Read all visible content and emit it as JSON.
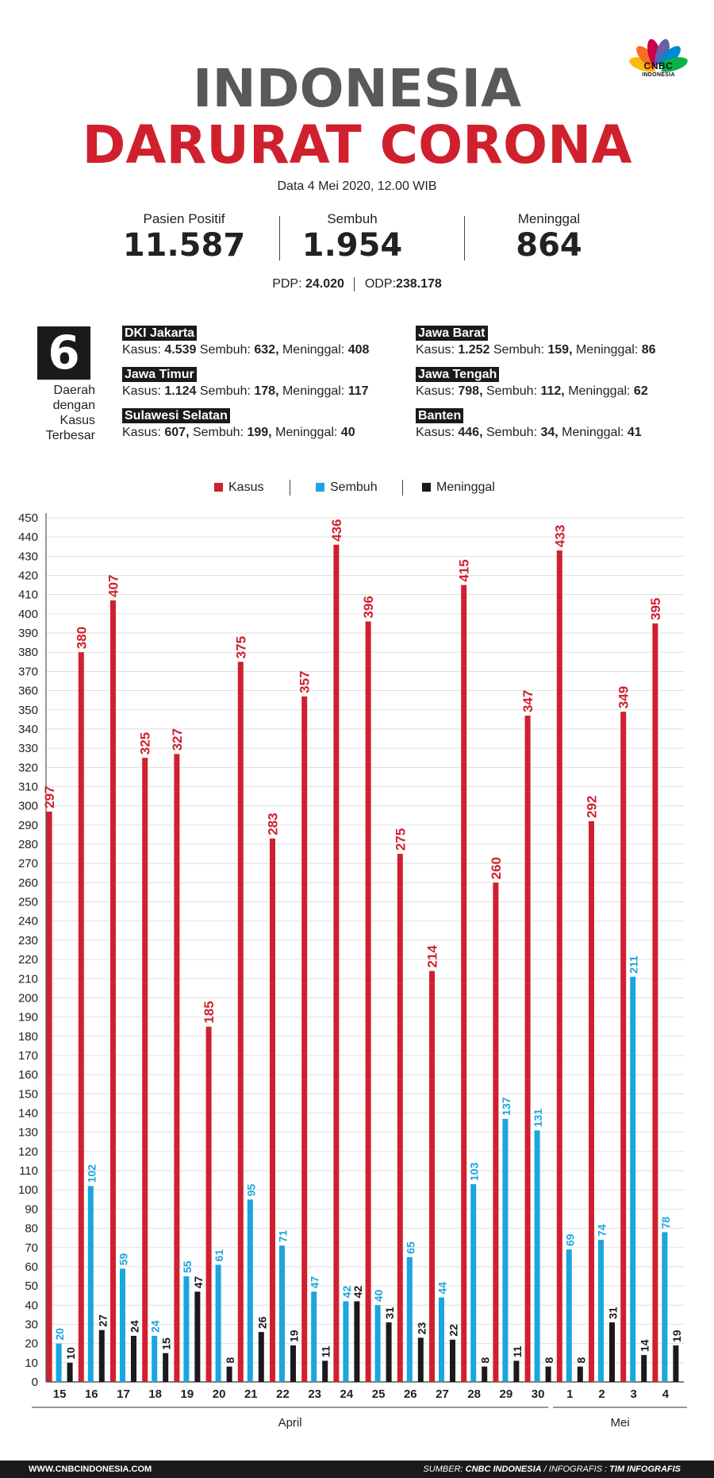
{
  "logo": {
    "name": "CNBC",
    "sub": "INDONESIA"
  },
  "title_line1": "INDONESIA",
  "title_line2": "DARURAT CORONA",
  "date": "Data 4 Mei 2020, 12.00 WIB",
  "stats": [
    {
      "label": "Pasien Positif",
      "value": "11.587"
    },
    {
      "label": "Sembuh",
      "value": "1.954"
    },
    {
      "label": "Meninggal",
      "value": "864"
    }
  ],
  "pdp": {
    "label": "PDP:",
    "value": "24.020"
  },
  "odp": {
    "label": "ODP:",
    "value": "238.178"
  },
  "regions_count": "6",
  "regions_caption": [
    "Daerah",
    "dengan",
    "Kasus",
    "Terbesar"
  ],
  "regions": [
    {
      "name": "DKI Jakarta",
      "kasus_label": "Kasus:",
      "kasus": "4.539",
      "sembuh_label": "Sembuh:",
      "sembuh": "632,",
      "meninggal_label": "Meninggal:",
      "meninggal": "408"
    },
    {
      "name": "Jawa Timur",
      "kasus_label": "Kasus:",
      "kasus": "1.124",
      "sembuh_label": "Sembuh:",
      "sembuh": "178,",
      "meninggal_label": "Meninggal:",
      "meninggal": "117"
    },
    {
      "name": "Sulawesi Selatan",
      "kasus_label": "Kasus:",
      "kasus": "607,",
      "sembuh_label": "Sembuh:",
      "sembuh": "199,",
      "meninggal_label": "Meninggal:",
      "meninggal": "40"
    },
    {
      "name": "Jawa Barat",
      "kasus_label": "Kasus:",
      "kasus": "1.252",
      "sembuh_label": "Sembuh:",
      "sembuh": "159,",
      "meninggal_label": "Meninggal:",
      "meninggal": "86"
    },
    {
      "name": "Jawa Tengah",
      "kasus_label": "Kasus:",
      "kasus": "798,",
      "sembuh_label": "Sembuh:",
      "sembuh": "112,",
      "meninggal_label": "Meninggal:",
      "meninggal": "62"
    },
    {
      "name": "Banten",
      "kasus_label": "Kasus:",
      "kasus": "446,",
      "sembuh_label": "Sembuh:",
      "sembuh": "34,",
      "meninggal_label": "Meninggal:",
      "meninggal": "41"
    }
  ],
  "footer": {
    "website": "WWW.CNBCINDONESIA.COM",
    "source_label": "SUMBER:",
    "source": "CNBC INDONESIA",
    "infographic_label": "/ INFOGRAFIS :",
    "infographic": "TIM INFOGRAFIS"
  },
  "chart_data": {
    "type": "bar",
    "categories": [
      "15",
      "16",
      "17",
      "18",
      "19",
      "20",
      "21",
      "22",
      "23",
      "24",
      "25",
      "26",
      "27",
      "28",
      "29",
      "30",
      "1",
      "2",
      "3",
      "4"
    ],
    "groups": [
      {
        "label": "April",
        "count": 16
      },
      {
        "label": "Mei",
        "count": 4
      }
    ],
    "series": [
      {
        "name": "Kasus",
        "color": "#d0202e",
        "values": [
          297,
          380,
          407,
          325,
          327,
          185,
          375,
          283,
          357,
          436,
          396,
          275,
          214,
          415,
          260,
          347,
          433,
          292,
          349,
          395
        ]
      },
      {
        "name": "Sembuh",
        "color": "#1aa6de",
        "values": [
          20,
          102,
          59,
          24,
          55,
          61,
          95,
          71,
          47,
          42,
          40,
          65,
          44,
          103,
          137,
          131,
          69,
          74,
          211,
          78
        ]
      },
      {
        "name": "Meninggal",
        "color": "#1a1a1a",
        "values": [
          10,
          27,
          24,
          15,
          47,
          8,
          26,
          19,
          11,
          42,
          31,
          23,
          22,
          8,
          11,
          8,
          8,
          31,
          14,
          19
        ]
      }
    ],
    "ylim": [
      0,
      450
    ],
    "ytick_step": 10,
    "legend": "top-center",
    "grid": true
  }
}
